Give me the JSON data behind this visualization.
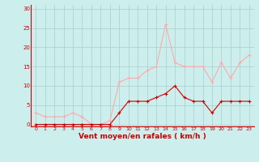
{
  "x": [
    0,
    1,
    2,
    3,
    4,
    5,
    6,
    7,
    8,
    9,
    10,
    11,
    12,
    13,
    14,
    15,
    16,
    17,
    18,
    19,
    20,
    21,
    22,
    23
  ],
  "y_mean": [
    0,
    0,
    0,
    0,
    0,
    0,
    0,
    0,
    0,
    3,
    6,
    6,
    6,
    7,
    8,
    10,
    7,
    6,
    6,
    3,
    6,
    6,
    6,
    6
  ],
  "y_gust": [
    3,
    2,
    2,
    2,
    3,
    2,
    0,
    0,
    1,
    11,
    12,
    12,
    14,
    15,
    26,
    16,
    15,
    15,
    15,
    11,
    16,
    12,
    16,
    18
  ],
  "line_color_mean": "#cc0000",
  "line_color_gust": "#ffaaaa",
  "bg_color": "#cceeed",
  "grid_color": "#aacccc",
  "xlabel": "Vent moyen/en rafales ( km/h )",
  "ylabel_ticks": [
    0,
    5,
    10,
    15,
    20,
    25,
    30
  ],
  "ylim": [
    -0.5,
    31
  ],
  "xlim": [
    -0.5,
    23.5
  ]
}
